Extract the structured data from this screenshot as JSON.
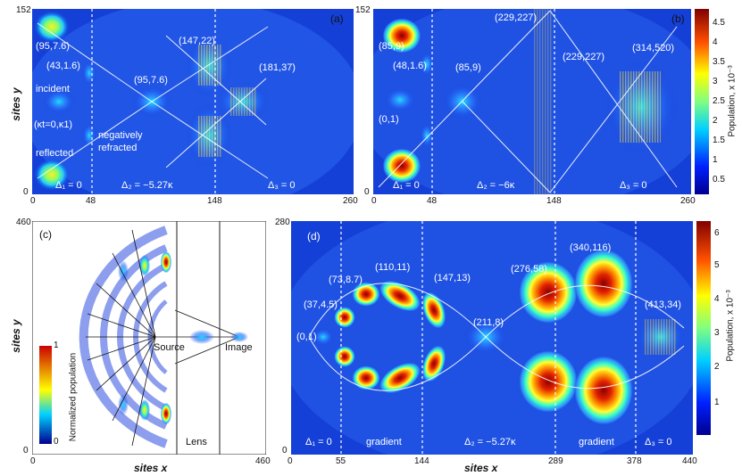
{
  "chart_data": [
    {
      "panel": "(a)",
      "type": "heatmap",
      "xlabel": "",
      "ylabel": "sites y",
      "xlim": [
        0,
        260
      ],
      "ylim": [
        0,
        152
      ],
      "xticks": [
        "0",
        "48",
        "148",
        "260"
      ],
      "yticks": [
        "0",
        "152"
      ],
      "regions": [
        "Δ₁ = 0",
        "Δ₂ = −5.27κ",
        "Δ₃ = 0"
      ],
      "boundaries": [
        48,
        148
      ],
      "annotations": [
        "(95,7.6)",
        "(43,1.6)",
        "(95,7.6)",
        "(147,22)",
        "(181,37)",
        "incident",
        "(κt=0,κ1)",
        "reflected",
        "negatively",
        "refracted"
      ]
    },
    {
      "panel": "(b)",
      "type": "heatmap",
      "xlim": [
        0,
        260
      ],
      "ylim": [
        0,
        152
      ],
      "xticks": [
        "0",
        "48",
        "148",
        "260"
      ],
      "yticks": [
        "0",
        "152"
      ],
      "regions": [
        "Δ₁ = 0",
        "Δ₂ = −6κ",
        "Δ₃ = 0"
      ],
      "boundaries": [
        48,
        148
      ],
      "annotations": [
        "(85,9)",
        "(48,1.6)",
        "(85,9)",
        "(0,1)",
        "(229,227)",
        "(229,227)",
        "(314,520)"
      ],
      "colorbar": {
        "title": "Population, x 10⁻³",
        "ticks": [
          "4.5",
          "4",
          "3.5",
          "3",
          "2.5",
          "2",
          "1.5",
          "1",
          "0.5"
        ]
      }
    },
    {
      "panel": "(c)",
      "type": "heatmap",
      "xlabel": "sites x",
      "ylabel": "sites y",
      "xlim": [
        0,
        460
      ],
      "ylim": [
        0,
        460
      ],
      "xticks": [
        "0",
        "460"
      ],
      "yticks": [
        "0",
        "460"
      ],
      "annotations": [
        "Source",
        "Image",
        "Lens"
      ],
      "colorbar": {
        "title": "Normalized population",
        "ticks": [
          "1",
          "0"
        ]
      }
    },
    {
      "panel": "(d)",
      "type": "heatmap",
      "xlabel": "sites x",
      "ylabel": "",
      "xlim": [
        0,
        440
      ],
      "ylim": [
        0,
        280
      ],
      "xticks": [
        "0",
        "55",
        "144",
        "289",
        "378",
        "440"
      ],
      "yticks": [
        "0",
        "280"
      ],
      "regions": [
        "Δ₁ = 0",
        "gradient",
        "Δ₂ = −5.27κ",
        "gradient",
        "Δ₃ = 0"
      ],
      "boundaries": [
        55,
        144,
        289,
        378
      ],
      "annotations": [
        "(37,4.5)",
        "(73,8.7)",
        "(110,11)",
        "(147,13)",
        "(211,8)",
        "(276,58)",
        "(340,116)",
        "(413,34)",
        "(0,1)"
      ],
      "colorbar": {
        "title": "Population, x 10⁻³",
        "ticks": [
          "6",
          "5",
          "4",
          "3",
          "2",
          "1"
        ]
      }
    }
  ]
}
